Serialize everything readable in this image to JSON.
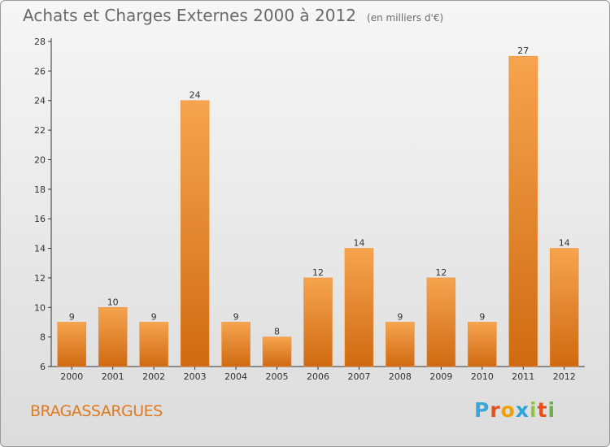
{
  "header": {
    "title": "Achats et Charges Externes 2000 à 2012",
    "unit": "(en milliers d'€)"
  },
  "footer": {
    "commune": "BRAGASSARGUES",
    "logo_letters": [
      "P",
      "r",
      "o",
      "x",
      "i",
      "t",
      "i"
    ],
    "logo_colors": [
      "#3aa7dc",
      "#e0521f",
      "#f0a000",
      "#2aa4d8",
      "#8cc63f",
      "#e94e1b",
      "#6ab04c"
    ]
  },
  "colors": {
    "bar": "#f0892a",
    "bar_light": "#f6a44f",
    "bar_dark": "#cf6a12"
  },
  "chart_data": {
    "type": "bar",
    "categories": [
      "2000",
      "2001",
      "2002",
      "2003",
      "2004",
      "2005",
      "2006",
      "2007",
      "2008",
      "2009",
      "2010",
      "2011",
      "2012"
    ],
    "values": [
      9,
      10,
      9,
      24,
      9,
      8,
      12,
      14,
      9,
      12,
      9,
      27,
      14
    ],
    "title": "Achats et Charges Externes 2000 à 2012",
    "xlabel": "",
    "ylabel": "",
    "ylim": [
      6,
      28
    ],
    "yticks": [
      6,
      8,
      10,
      12,
      14,
      16,
      18,
      20,
      22,
      24,
      26,
      28
    ],
    "grid": false,
    "legend": "none"
  }
}
